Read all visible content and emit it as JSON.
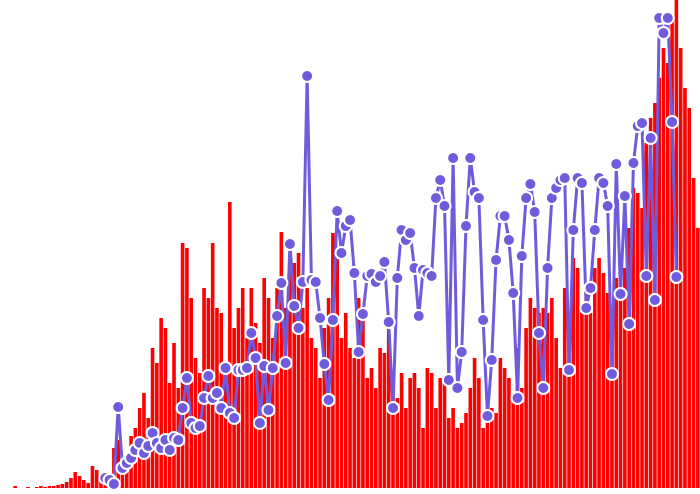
{
  "chart_data": {
    "type": "bar",
    "categories": [
      null,
      null,
      null,
      null,
      null,
      null,
      null,
      null,
      null,
      null,
      null,
      null,
      null,
      null,
      null,
      null,
      null,
      null,
      null,
      null,
      null,
      null,
      null,
      null,
      null,
      null,
      null,
      null,
      null,
      null,
      null,
      null,
      null,
      null,
      null,
      null,
      null,
      null,
      null,
      null,
      null,
      null,
      null,
      null,
      null,
      null,
      null,
      null,
      null,
      null,
      null,
      null,
      null,
      null,
      null,
      null,
      null,
      null,
      null,
      null,
      null,
      null,
      null,
      null,
      null,
      null,
      null,
      null,
      null,
      null,
      null,
      null,
      null,
      null,
      null,
      null,
      null,
      null,
      null,
      null,
      null,
      null,
      null,
      null,
      null,
      null,
      null,
      null,
      null,
      null,
      null,
      null,
      null,
      null,
      null,
      null,
      null,
      null,
      null,
      null,
      null,
      null,
      null,
      null,
      null,
      null,
      null,
      null,
      null,
      null,
      null,
      null,
      null,
      null,
      null,
      null,
      null,
      null,
      null,
      null,
      null,
      null,
      null,
      null,
      null,
      null,
      null,
      null,
      null,
      null,
      null,
      null,
      null,
      null,
      null,
      null,
      null,
      null,
      null,
      null,
      null,
      null,
      null,
      null,
      null,
      null,
      null,
      null,
      null,
      null,
      null,
      null,
      null,
      null,
      null,
      null,
      null,
      null,
      null,
      null
    ],
    "ylim": [
      0,
      488
    ],
    "series": [
      {
        "type": "bar",
        "color": "#ff0000",
        "values": [
          2,
          0,
          0,
          1,
          0,
          1,
          2,
          1,
          2,
          2,
          3,
          4,
          6,
          10,
          16,
          12,
          8,
          5,
          22,
          18,
          14,
          12,
          8,
          40,
          48,
          25,
          30,
          52,
          60,
          80,
          95,
          70,
          140,
          125,
          170,
          160,
          105,
          145,
          100,
          245,
          240,
          190,
          130,
          115,
          200,
          190,
          245,
          180,
          175,
          105,
          286,
          160,
          180,
          200,
          150,
          200,
          165,
          145,
          210,
          190,
          150,
          200,
          256,
          180,
          220,
          225,
          235,
          180,
          200,
          150,
          140,
          110,
          160,
          190,
          255,
          230,
          150,
          175,
          140,
          130,
          190,
          180,
          110,
          120,
          100,
          140,
          135,
          160,
          105,
          90,
          115,
          80,
          110,
          115,
          100,
          60,
          120,
          115,
          80,
          110,
          110,
          70,
          80,
          60,
          65,
          75,
          100,
          130,
          110,
          60,
          85,
          80,
          75,
          130,
          120,
          110,
          90,
          140,
          100,
          160,
          190,
          180,
          175,
          180,
          175,
          190,
          150,
          120,
          200,
          170,
          230,
          220,
          180,
          195,
          175,
          220,
          230,
          215,
          195,
          180,
          210,
          225,
          220,
          260,
          300,
          295,
          280,
          345,
          370,
          385,
          410,
          440,
          425,
          470,
          488,
          440,
          400,
          380,
          310,
          260
        ]
      },
      {
        "type": "line",
        "color": "#6f5cdc",
        "values": [
          null,
          null,
          null,
          null,
          null,
          null,
          null,
          null,
          null,
          null,
          null,
          null,
          null,
          null,
          null,
          null,
          null,
          null,
          null,
          null,
          null,
          10,
          8,
          4,
          81,
          20,
          25,
          30,
          38,
          45,
          35,
          42,
          55,
          45,
          40,
          48,
          38,
          50,
          48,
          80,
          110,
          65,
          60,
          62,
          90,
          112,
          90,
          95,
          80,
          120,
          75,
          70,
          118,
          118,
          120,
          155,
          130,
          65,
          122,
          78,
          120,
          172,
          205,
          125,
          244,
          182,
          160,
          206,
          412,
          208,
          206,
          170,
          124,
          88,
          168,
          277,
          235,
          262,
          268,
          215,
          136,
          174,
          212,
          214,
          206,
          212,
          226,
          166,
          80,
          210,
          258,
          248,
          255,
          220,
          172,
          218,
          215,
          212,
          290,
          308,
          282,
          108,
          330,
          100,
          136,
          262,
          330,
          296,
          290,
          168,
          72,
          128,
          228,
          272,
          272,
          248,
          195,
          90,
          232,
          290,
          304,
          276,
          155,
          100,
          220,
          290,
          300,
          308,
          310,
          118,
          258,
          310,
          305,
          180,
          200,
          258,
          310,
          305,
          282,
          114,
          324,
          194,
          292,
          164,
          325,
          362,
          365,
          212,
          350,
          188,
          470,
          455,
          470,
          366,
          211,
          null,
          null,
          null,
          null,
          null
        ]
      }
    ]
  }
}
